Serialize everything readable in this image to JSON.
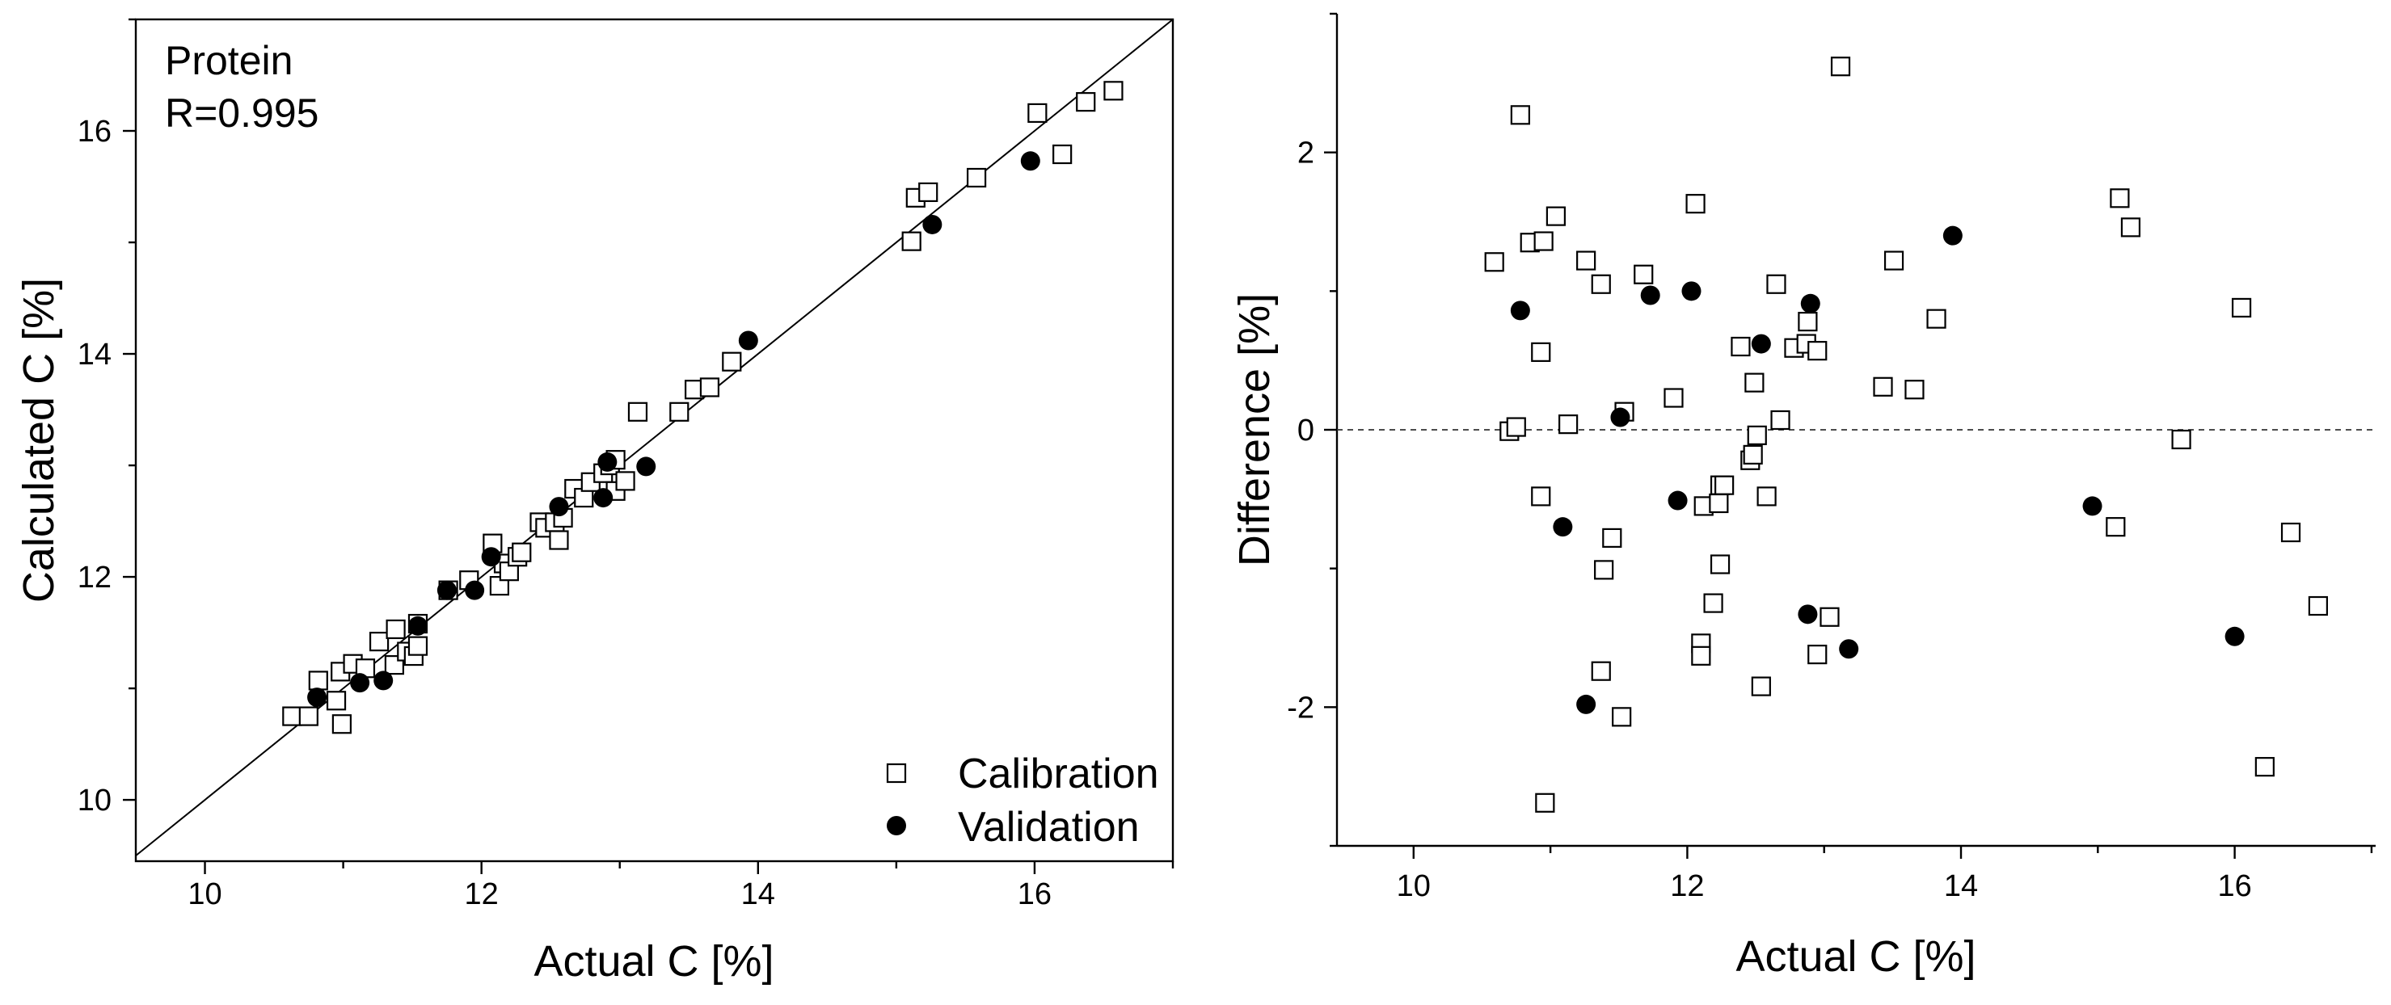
{
  "chart_data": [
    {
      "type": "scatter",
      "annotations": [
        "Protein",
        "R=0.995"
      ],
      "xlabel": "Actual C [%]",
      "ylabel": "Calculated C [%]",
      "xlim": [
        9.5,
        17
      ],
      "ylim": [
        9.45,
        17
      ],
      "xticks": [
        10,
        12,
        14,
        16
      ],
      "yticks": [
        10,
        12,
        14,
        16
      ],
      "identity_line": true,
      "legend_position": "bottom-right",
      "series": [
        {
          "name": "Calibration",
          "marker": "open-square",
          "points": [
            [
              10.63,
              10.75
            ],
            [
              10.75,
              10.75
            ],
            [
              10.82,
              11.07
            ],
            [
              10.98,
              11.15
            ],
            [
              10.99,
              10.68
            ],
            [
              10.95,
              10.89
            ],
            [
              11.07,
              11.22
            ],
            [
              11.16,
              11.18
            ],
            [
              11.26,
              11.42
            ],
            [
              11.38,
              11.53
            ],
            [
              11.37,
              11.21
            ],
            [
              11.46,
              11.33
            ],
            [
              11.51,
              11.29
            ],
            [
              11.54,
              11.58
            ],
            [
              11.54,
              11.38
            ],
            [
              11.76,
              11.88
            ],
            [
              11.91,
              11.97
            ],
            [
              12.08,
              12.3
            ],
            [
              12.13,
              11.92
            ],
            [
              12.16,
              12.12
            ],
            [
              12.2,
              12.05
            ],
            [
              12.26,
              12.18
            ],
            [
              12.29,
              12.22
            ],
            [
              12.42,
              12.49
            ],
            [
              12.46,
              12.44
            ],
            [
              12.53,
              12.49
            ],
            [
              12.56,
              12.33
            ],
            [
              12.59,
              12.53
            ],
            [
              12.67,
              12.79
            ],
            [
              12.74,
              12.71
            ],
            [
              12.79,
              12.85
            ],
            [
              12.88,
              12.93
            ],
            [
              12.93,
              13.0
            ],
            [
              12.97,
              12.77
            ],
            [
              13.04,
              12.86
            ],
            [
              12.97,
              13.05
            ],
            [
              13.13,
              13.48
            ],
            [
              13.43,
              13.48
            ],
            [
              13.54,
              13.68
            ],
            [
              13.65,
              13.7
            ],
            [
              13.81,
              13.93
            ],
            [
              15.11,
              15.01
            ],
            [
              15.14,
              15.4
            ],
            [
              15.23,
              15.45
            ],
            [
              15.58,
              15.58
            ],
            [
              16.02,
              16.16
            ],
            [
              16.2,
              15.79
            ],
            [
              16.37,
              16.26
            ],
            [
              16.57,
              16.36
            ]
          ]
        },
        {
          "name": "Validation",
          "marker": "filled-circle",
          "points": [
            [
              10.81,
              10.92
            ],
            [
              11.12,
              11.05
            ],
            [
              11.29,
              11.07
            ],
            [
              11.54,
              11.56
            ],
            [
              11.75,
              11.88
            ],
            [
              11.95,
              11.88
            ],
            [
              12.07,
              12.18
            ],
            [
              12.56,
              12.63
            ],
            [
              12.88,
              12.71
            ],
            [
              12.91,
              13.03
            ],
            [
              13.19,
              12.99
            ],
            [
              13.93,
              14.12
            ],
            [
              15.26,
              15.16
            ],
            [
              15.97,
              15.73
            ]
          ]
        }
      ]
    },
    {
      "type": "scatter",
      "xlabel": "Actual C [%]",
      "ylabel": "Difference [%]",
      "xlim": [
        9.44,
        17.03
      ],
      "ylim": [
        -3,
        3
      ],
      "xticks": [
        10,
        12,
        14,
        16
      ],
      "yticks": [
        -2,
        0,
        2
      ],
      "reference_hline": {
        "y": 0,
        "dashed": true
      },
      "series": [
        {
          "marker": "open-square",
          "points": [
            [
              10.59,
              1.21
            ],
            [
              10.7,
              -0.01
            ],
            [
              10.75,
              0.02
            ],
            [
              10.78,
              2.27
            ],
            [
              10.85,
              1.35
            ],
            [
              10.93,
              0.56
            ],
            [
              10.95,
              1.36
            ],
            [
              10.93,
              -0.48
            ],
            [
              10.96,
              -2.69
            ],
            [
              11.04,
              1.54
            ],
            [
              11.13,
              0.04
            ],
            [
              11.26,
              1.22
            ],
            [
              11.37,
              1.05
            ],
            [
              11.37,
              -1.74
            ],
            [
              11.39,
              -1.01
            ],
            [
              11.45,
              -0.78
            ],
            [
              11.52,
              -2.07
            ],
            [
              11.54,
              0.13
            ],
            [
              11.68,
              1.12
            ],
            [
              11.9,
              0.23
            ],
            [
              12.06,
              1.63
            ],
            [
              12.1,
              -1.54
            ],
            [
              12.1,
              -1.63
            ],
            [
              12.12,
              -0.55
            ],
            [
              12.19,
              -1.25
            ],
            [
              12.23,
              -0.53
            ],
            [
              12.24,
              -0.97
            ],
            [
              12.24,
              -0.4
            ],
            [
              12.27,
              -0.4
            ],
            [
              12.39,
              0.6
            ],
            [
              12.46,
              -0.22
            ],
            [
              12.48,
              -0.18
            ],
            [
              12.49,
              0.34
            ],
            [
              12.51,
              -0.04
            ],
            [
              12.54,
              -1.85
            ],
            [
              12.58,
              -0.48
            ],
            [
              12.65,
              1.05
            ],
            [
              12.68,
              0.07
            ],
            [
              12.78,
              0.59
            ],
            [
              12.88,
              0.78
            ],
            [
              12.87,
              0.62
            ],
            [
              12.95,
              0.57
            ],
            [
              12.95,
              -1.62
            ],
            [
              13.04,
              -1.35
            ],
            [
              13.12,
              2.62
            ],
            [
              13.43,
              0.31
            ],
            [
              13.51,
              1.22
            ],
            [
              13.66,
              0.29
            ],
            [
              13.82,
              0.8
            ],
            [
              15.13,
              -0.7
            ],
            [
              15.16,
              1.67
            ],
            [
              15.24,
              1.46
            ],
            [
              15.61,
              -0.07
            ],
            [
              16.05,
              0.88
            ],
            [
              16.22,
              -2.43
            ],
            [
              16.41,
              -0.74
            ],
            [
              16.61,
              -1.27
            ]
          ]
        },
        {
          "marker": "filled-circle",
          "points": [
            [
              10.78,
              0.86
            ],
            [
              11.09,
              -0.7
            ],
            [
              11.26,
              -1.98
            ],
            [
              11.51,
              0.09
            ],
            [
              11.73,
              0.97
            ],
            [
              11.93,
              -0.51
            ],
            [
              12.03,
              1.0
            ],
            [
              12.54,
              0.62
            ],
            [
              12.88,
              -1.33
            ],
            [
              12.9,
              0.91
            ],
            [
              13.18,
              -1.58
            ],
            [
              13.94,
              1.4
            ],
            [
              14.96,
              -0.55
            ],
            [
              16.0,
              -1.49
            ]
          ]
        }
      ]
    }
  ]
}
